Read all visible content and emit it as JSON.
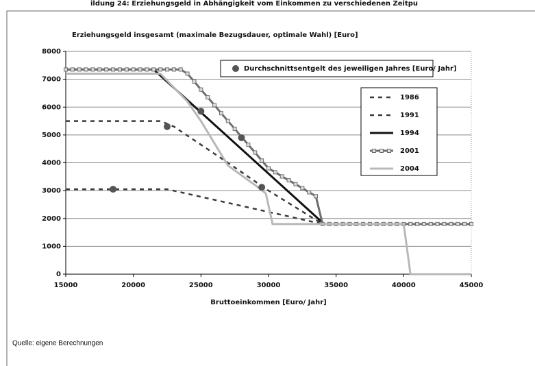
{
  "caption": "ildung 24: Erziehungsgeld in Abhängigkeit vom Einkommen zu verschiedenen Zeitpu",
  "source": "Quelle: eigene Berechnungen",
  "chart_data": {
    "type": "line",
    "title": "Erziehungsgeld insgesamt (maximale Bezugsdauer, optimale Wahl) [Euro]",
    "x_label": "Bruttoeinkommen [Euro/ Jahr]",
    "xlim": [
      15000,
      45000
    ],
    "xticks": [
      15000,
      20000,
      25000,
      30000,
      35000,
      40000,
      45000
    ],
    "ylim": [
      0,
      8000
    ],
    "yticks": [
      0,
      1000,
      2000,
      3000,
      4000,
      5000,
      6000,
      7000,
      8000
    ],
    "grid": true,
    "series": [
      {
        "name": "1986",
        "color": "#3a3a3a",
        "dash": true,
        "x": [
          15000,
          22500,
          34000
        ],
        "values": [
          3050,
          3050,
          1800
        ]
      },
      {
        "name": "1991",
        "color": "#3a3a3a",
        "dash": true,
        "x": [
          15000,
          22000,
          23000,
          27000,
          30000,
          34000
        ],
        "values": [
          5500,
          5500,
          5300,
          4000,
          3000,
          1800
        ]
      },
      {
        "name": "1994",
        "color": "#111111",
        "dash": false,
        "x": [
          15000,
          21500,
          34000
        ],
        "values": [
          7350,
          7350,
          1850
        ]
      },
      {
        "name": "2001",
        "color": "#6e6e6e",
        "dash": false,
        "markers": true,
        "x": [
          15000,
          15500,
          16000,
          16500,
          17000,
          17500,
          18000,
          18500,
          19000,
          19500,
          20000,
          20500,
          21000,
          21500,
          22000,
          22500,
          23000,
          23500,
          24000,
          24500,
          25000,
          25500,
          26000,
          26500,
          27000,
          27500,
          28000,
          28500,
          29000,
          29500,
          30000,
          30500,
          31000,
          31500,
          32000,
          32500,
          33000,
          33500,
          34000,
          34500,
          35000,
          35500,
          36000,
          36500,
          37000,
          37500,
          38000,
          38500,
          39000,
          39500,
          40000,
          40500,
          41000,
          41500,
          42000,
          42500,
          43000,
          43500,
          44000,
          44500,
          45000
        ],
        "values": [
          7350,
          7350,
          7350,
          7350,
          7350,
          7350,
          7350,
          7350,
          7350,
          7350,
          7350,
          7350,
          7350,
          7350,
          7350,
          7350,
          7350,
          7350,
          7200,
          6920,
          6630,
          6350,
          6070,
          5780,
          5500,
          5220,
          4930,
          4650,
          4370,
          4080,
          3800,
          3660,
          3510,
          3370,
          3230,
          3090,
          2940,
          2800,
          1800,
          1800,
          1800,
          1800,
          1800,
          1800,
          1800,
          1800,
          1800,
          1800,
          1800,
          1800,
          1800,
          1800,
          1800,
          1800,
          1800,
          1800,
          1800,
          1800,
          1800,
          1800,
          1800
        ]
      },
      {
        "name": "2004",
        "color": "#b8b8b8",
        "dash": false,
        "x": [
          15000,
          22000,
          24000,
          25000,
          27000,
          29000,
          29800,
          30300,
          40000,
          40500,
          45000
        ],
        "values": [
          7200,
          7200,
          6200,
          5500,
          3900,
          3200,
          2900,
          1800,
          1800,
          0,
          0
        ]
      }
    ],
    "points": {
      "name": "Durchschnittsentgelt des jeweiligen Jahres [Euro/ Jahr]",
      "color": "#555555",
      "x": [
        18500,
        22500,
        25000,
        28000,
        29500
      ],
      "values": [
        3050,
        5300,
        5850,
        4900,
        3120
      ]
    }
  }
}
